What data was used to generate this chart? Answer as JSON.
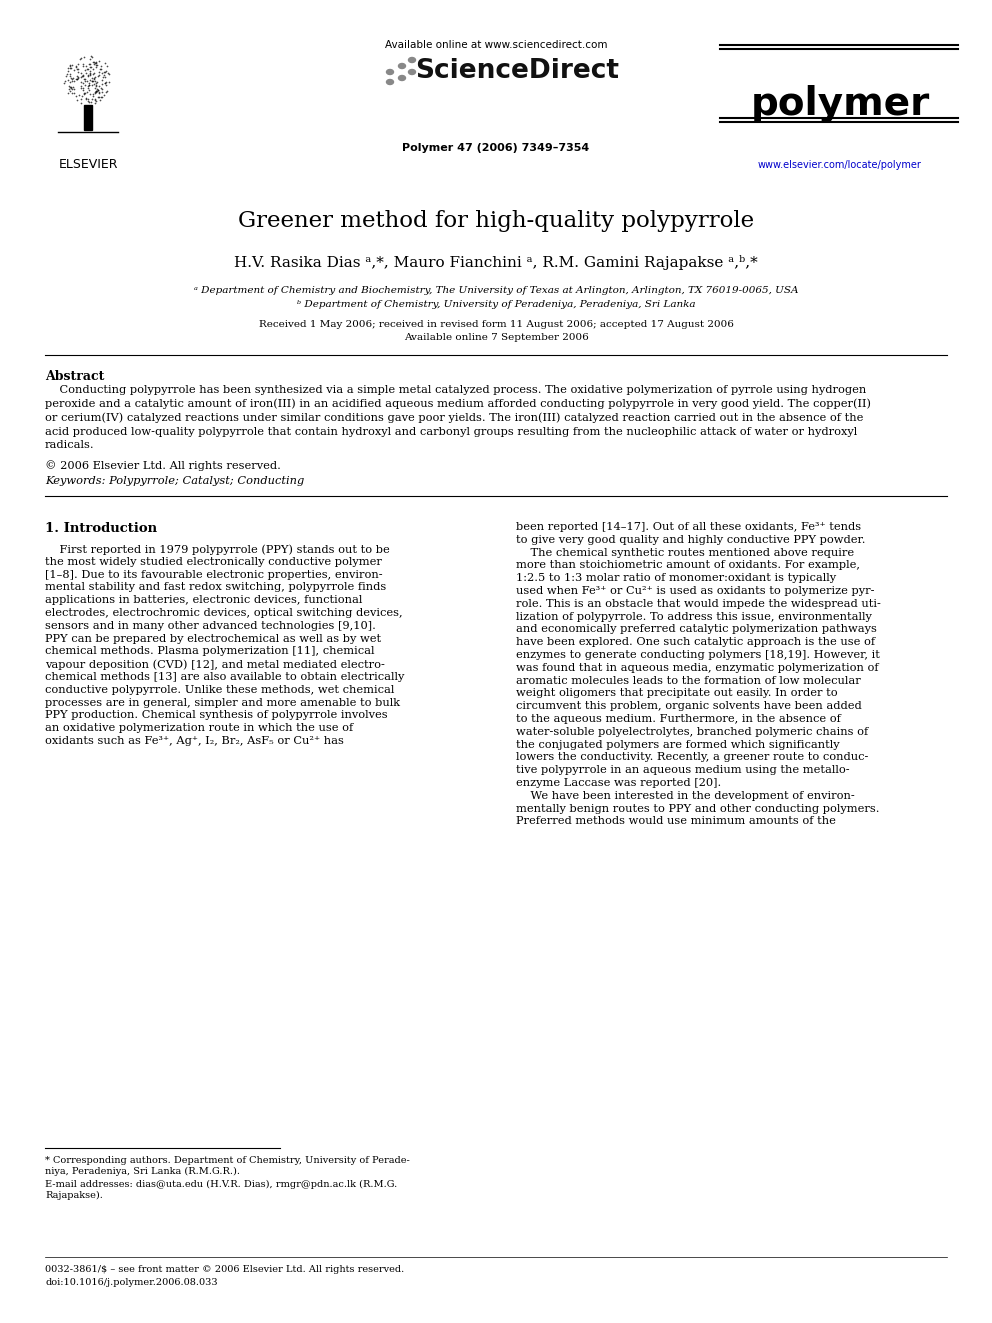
{
  "title": "Greener method for high-quality polypyrrole",
  "author_line": "H.V. Rasika Dias ᵃ,*, Mauro Fianchini ᵃ, R.M. Gamini Rajapakse ᵃ,ᵇ,*",
  "affil_a": "ᵃ Department of Chemistry and Biochemistry, The University of Texas at Arlington, Arlington, TX 76019-0065, USA",
  "affil_b": "ᵇ Department of Chemistry, University of Peradeniya, Peradeniya, Sri Lanka",
  "received": "Received 1 May 2006; received in revised form 11 August 2006; accepted 17 August 2006",
  "available_online_date": "Available online 7 September 2006",
  "journal_ref": "Polymer 47 (2006) 7349–7354",
  "available_online_header": "Available online at www.sciencedirect.com",
  "sciencedirect": "ScienceDirect",
  "journal_name": "polymer",
  "journal_url": "www.elsevier.com/locate/polymer",
  "elsevier_label": "ELSEVIER",
  "abstract_head": "Abstract",
  "abstract_body": "    Conducting polypyrrole has been synthesized via a simple metal catalyzed process. The oxidative polymerization of pyrrole using hydrogen\nperoxide and a catalytic amount of iron(III) in an acidified aqueous medium afforded conducting polypyrrole in very good yield. The copper(II)\nor cerium(IV) catalyzed reactions under similar conditions gave poor yields. The iron(III) catalyzed reaction carried out in the absence of the\nacid produced low-quality polypyrrole that contain hydroxyl and carbonyl groups resulting from the nucleophilic attack of water or hydroxyl\nradicals.",
  "copyright_line": "© 2006 Elsevier Ltd. All rights reserved.",
  "keywords_line": "Keywords: Polypyrrole; Catalyst; Conducting",
  "section1_head": "1. Introduction",
  "col1_lines": [
    "    First reported in 1979 polypyrrole (PPY) stands out to be",
    "the most widely studied electronically conductive polymer",
    "[1–8]. Due to its favourable electronic properties, environ-",
    "mental stability and fast redox switching, polypyrrole finds",
    "applications in batteries, electronic devices, functional",
    "electrodes, electrochromic devices, optical switching devices,",
    "sensors and in many other advanced technologies [9,10].",
    "PPY can be prepared by electrochemical as well as by wet",
    "chemical methods. Plasma polymerization [11], chemical",
    "vapour deposition (CVD) [12], and metal mediated electro-",
    "chemical methods [13] are also available to obtain electrically",
    "conductive polypyrrole. Unlike these methods, wet chemical",
    "processes are in general, simpler and more amenable to bulk",
    "PPY production. Chemical synthesis of polypyrrole involves",
    "an oxidative polymerization route in which the use of",
    "oxidants such as Fe³⁺, Ag⁺, I₂, Br₂, AsF₅ or Cu²⁺ has"
  ],
  "col2_lines": [
    "been reported [14–17]. Out of all these oxidants, Fe³⁺ tends",
    "to give very good quality and highly conductive PPY powder.",
    "    The chemical synthetic routes mentioned above require",
    "more than stoichiometric amount of oxidants. For example,",
    "1:2.5 to 1:3 molar ratio of monomer:oxidant is typically",
    "used when Fe³⁺ or Cu²⁺ is used as oxidants to polymerize pyr-",
    "role. This is an obstacle that would impede the widespread uti-",
    "lization of polypyrrole. To address this issue, environmentally",
    "and economically preferred catalytic polymerization pathways",
    "have been explored. One such catalytic approach is the use of",
    "enzymes to generate conducting polymers [18,19]. However, it",
    "was found that in aqueous media, enzymatic polymerization of",
    "aromatic molecules leads to the formation of low molecular",
    "weight oligomers that precipitate out easily. In order to",
    "circumvent this problem, organic solvents have been added",
    "to the aqueous medium. Furthermore, in the absence of",
    "water-soluble polyelectrolytes, branched polymeric chains of",
    "the conjugated polymers are formed which significantly",
    "lowers the conductivity. Recently, a greener route to conduc-",
    "tive polypyrrole in an aqueous medium using the metallo-",
    "enzyme Laccase was reported [20].",
    "    We have been interested in the development of environ-",
    "mentally benign routes to PPY and other conducting polymers.",
    "Preferred methods would use minimum amounts of the"
  ],
  "footnote1": "* Corresponding authors. Department of Chemistry, University of Perade-",
  "footnote1b": "niya, Peradeniya, Sri Lanka (R.M.G.R.).",
  "footnote2": "E-mail addresses: dias@uta.edu (H.V.R. Dias), rmgr@pdn.ac.lk (R.M.G.",
  "footnote2b": "Rajapakse).",
  "footer1": "0032-3861/$ – see front matter © 2006 Elsevier Ltd. All rights reserved.",
  "footer2": "doi:10.1016/j.polymer.2006.08.033",
  "bg": "#ffffff",
  "black": "#000000",
  "blue": "#0000cc",
  "gray": "#808080"
}
